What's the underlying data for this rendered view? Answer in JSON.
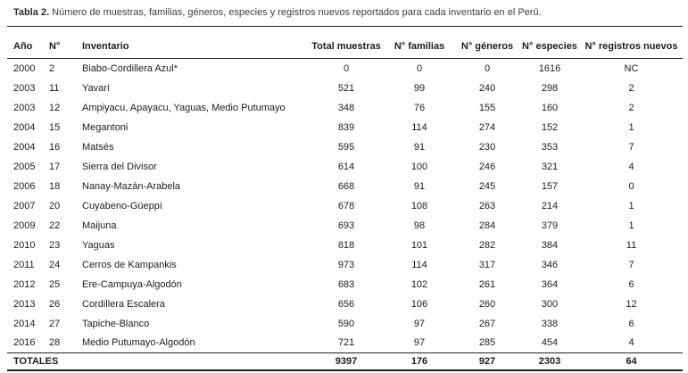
{
  "caption": {
    "label": "Tabla 2.",
    "text": "Número de muestras, familias, géneros, especies y registros nuevos reportados para cada inventario en el Perú."
  },
  "table": {
    "columns": [
      "Año",
      "N°",
      "Inventario",
      "Total muestras",
      "N° familias",
      "N° géneros",
      "N° especies",
      "N° registros nuevos"
    ],
    "rows": [
      [
        "2000",
        "2",
        "Biabo-Cordillera Azul*",
        "0",
        "0",
        "0",
        "1616",
        "NC"
      ],
      [
        "2003",
        "11",
        "Yavarí",
        "521",
        "99",
        "240",
        "298",
        "2"
      ],
      [
        "2003",
        "12",
        "Ampiyacu, Apayacu, Yaguas, Medio Putumayo",
        "348",
        "76",
        "155",
        "160",
        "2"
      ],
      [
        "2004",
        "15",
        "Megantoni",
        "839",
        "114",
        "274",
        "152",
        "1"
      ],
      [
        "2004",
        "16",
        "Matsés",
        "595",
        "91",
        "230",
        "353",
        "7"
      ],
      [
        "2005",
        "17",
        "Sierra del Divisor",
        "614",
        "100",
        "246",
        "321",
        "4"
      ],
      [
        "2006",
        "18",
        "Nanay-Mazán-Arabela",
        "668",
        "91",
        "245",
        "157",
        "0"
      ],
      [
        "2007",
        "20",
        "Cuyabeno-Güeppí",
        "678",
        "108",
        "263",
        "214",
        "1"
      ],
      [
        "2009",
        "22",
        "Maijuna",
        "693",
        "98",
        "284",
        "379",
        "1"
      ],
      [
        "2010",
        "23",
        "Yaguas",
        "818",
        "101",
        "282",
        "384",
        "11"
      ],
      [
        "2011",
        "24",
        "Cerros de Kampankis",
        "973",
        "114",
        "317",
        "346",
        "7"
      ],
      [
        "2012",
        "25",
        "Ere-Campuya-Algodón",
        "683",
        "102",
        "261",
        "364",
        "6"
      ],
      [
        "2013",
        "26",
        "Cordillera Escalera",
        "656",
        "106",
        "260",
        "300",
        "12"
      ],
      [
        "2014",
        "27",
        "Tapiche-Blanco",
        "590",
        "97",
        "267",
        "338",
        "6"
      ],
      [
        "2016",
        "28",
        "Medio Putumayo-Algodón",
        "721",
        "97",
        "285",
        "454",
        "4"
      ]
    ],
    "totals": {
      "label": "TOTALES",
      "values": [
        "9397",
        "176",
        "927",
        "2303",
        "64"
      ]
    }
  },
  "colors": {
    "background": "#ffffff",
    "text": "#1c1c1c",
    "caption_text": "#3d3d3d",
    "rule": "#222222"
  }
}
